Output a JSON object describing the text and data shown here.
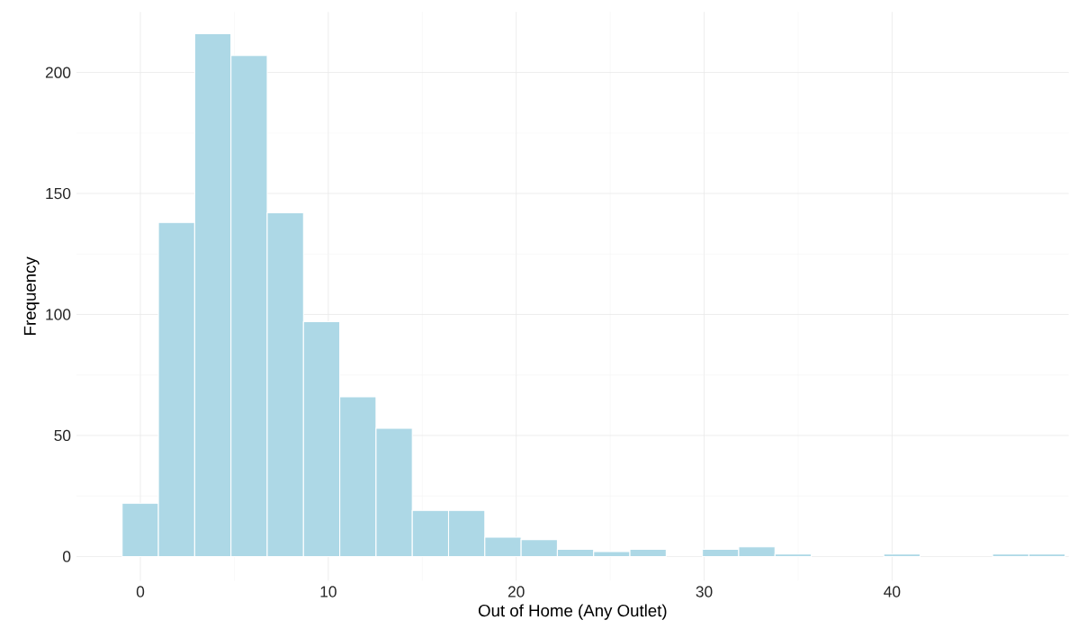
{
  "chart_data": {
    "type": "histogram",
    "xlabel": "Out of Home (Any Outlet)",
    "ylabel": "Frequency",
    "bins": [
      -0.97,
      0.96,
      2.89,
      4.82,
      6.75,
      8.68,
      10.61,
      12.54,
      14.47,
      16.4,
      18.33,
      20.26,
      22.19,
      24.12,
      26.05,
      27.98,
      29.91,
      31.84,
      33.77,
      35.7,
      37.63,
      39.56,
      41.49,
      43.42,
      45.35,
      47.28,
      49.21
    ],
    "values": [
      22,
      138,
      216,
      207,
      142,
      97,
      66,
      53,
      19,
      19,
      8,
      7,
      3,
      2,
      3,
      0,
      3,
      4,
      1,
      0,
      0,
      1,
      0,
      0,
      1,
      1
    ],
    "color": "#add8e6",
    "xlim": [
      -3.4,
      49.4
    ],
    "ylim": [
      -10,
      225
    ],
    "xticks": [
      0,
      10,
      20,
      30,
      40
    ],
    "yticks": [
      0,
      50,
      100,
      150,
      200
    ],
    "grid": true
  }
}
